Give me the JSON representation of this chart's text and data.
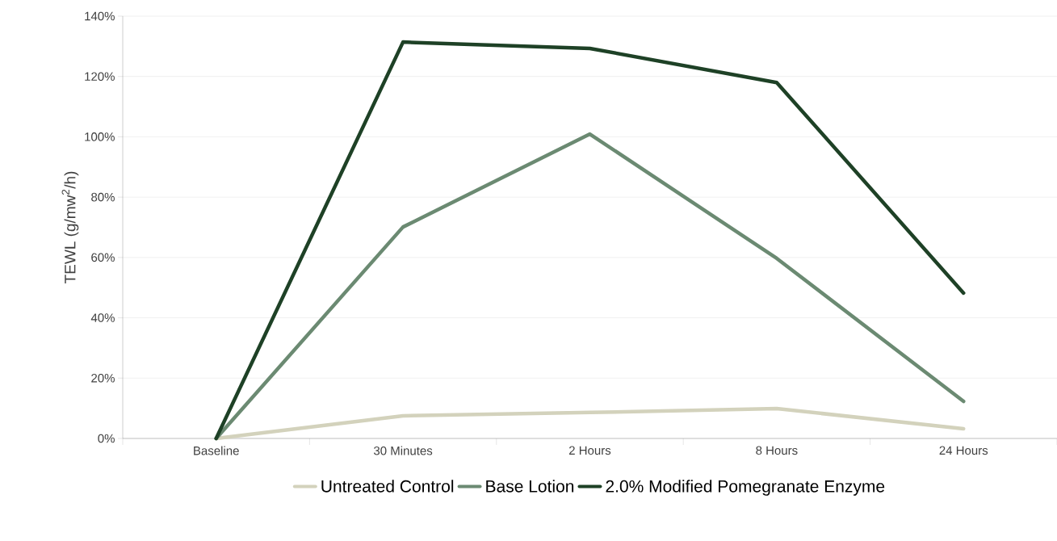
{
  "chart_data": {
    "type": "line",
    "ylabel": "TEWL (g/mw$^{2}$/h)",
    "categories": [
      "Baseline",
      "30 Minutes",
      "2 Hours",
      "8 Hours",
      "24 Hours"
    ],
    "series": [
      {
        "name": "Untreated Control",
        "color": "#d3d2bc",
        "values": [
          0,
          7.5,
          8.6,
          9.9,
          3.2
        ]
      },
      {
        "name": "Base Lotion",
        "color": "#6b8a72",
        "values": [
          0,
          70.1,
          100.9,
          59.7,
          12.3
        ]
      },
      {
        "name": "2.0% Modified Pomegranate Enzyme",
        "color": "#1e4126",
        "values": [
          0,
          131.4,
          129.3,
          118,
          48.2
        ]
      }
    ],
    "ylim": [
      0,
      140
    ],
    "yticks": [
      {
        "value": 0,
        "label": "0%"
      },
      {
        "value": 20,
        "label": "20%"
      },
      {
        "value": 40,
        "label": "40%"
      },
      {
        "value": 60,
        "label": "60%"
      },
      {
        "value": 80,
        "label": "80%"
      },
      {
        "value": 100,
        "label": "100%"
      },
      {
        "value": 120,
        "label": "120%"
      },
      {
        "value": 140,
        "label": "140%"
      }
    ],
    "grid": "y",
    "legend": "bottom",
    "marker": "none",
    "line_style": "solid"
  }
}
